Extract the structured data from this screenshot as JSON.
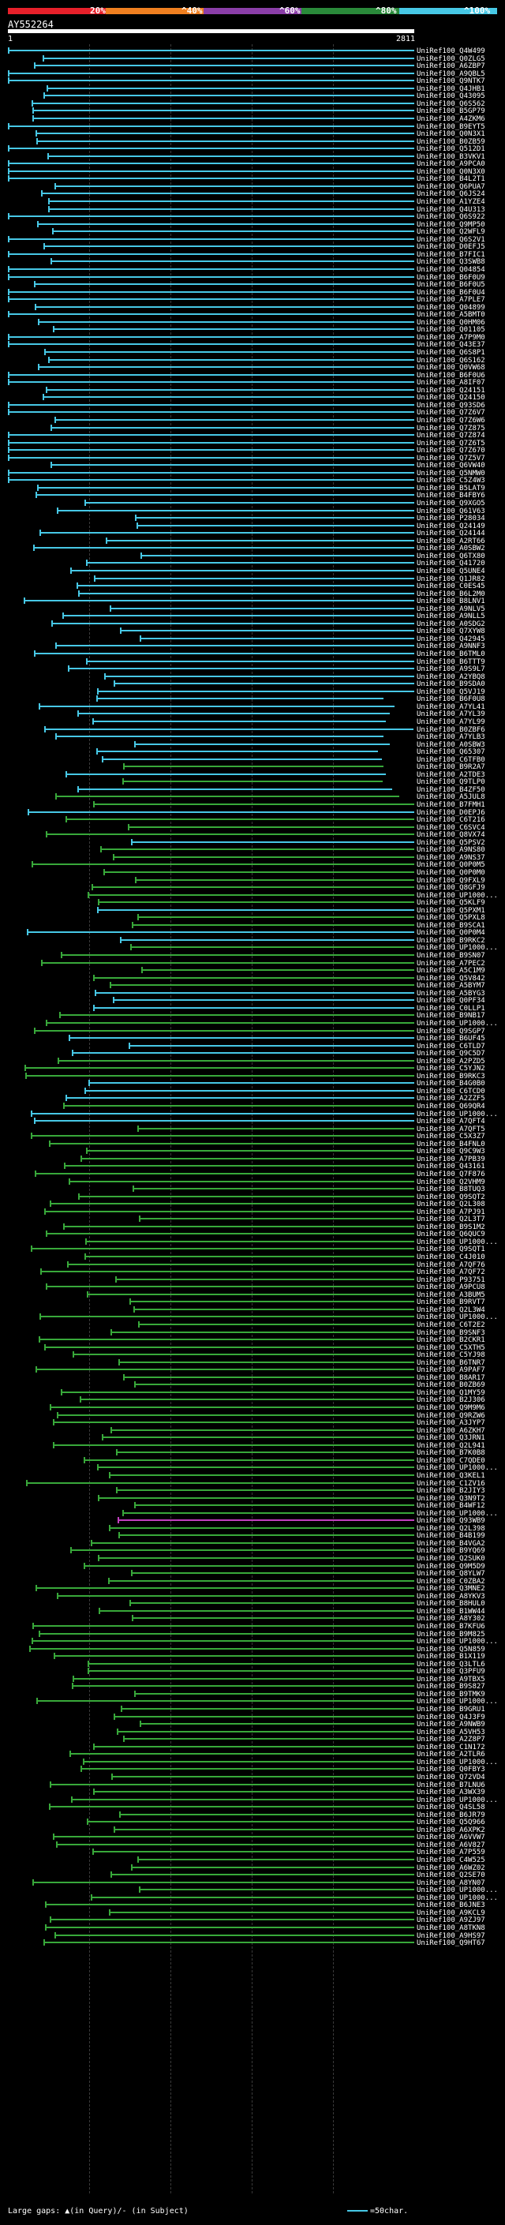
{
  "scale": {
    "labels": [
      "20%",
      "^40%",
      "^60%",
      "^80%",
      "^100%"
    ],
    "colors": {
      "c1": "#e8202a",
      "c2": "#f07f20",
      "c3": "#8b3ea8",
      "c4": "#2a8a3a",
      "c5": "#47c8e6"
    }
  },
  "query": {
    "id": "AY552264",
    "start": "1",
    "end": "2811"
  },
  "colors": {
    "cyan": "#47c8e6",
    "green": "#38a83a",
    "magenta": "#c23fbf",
    "dkgreen": "#2b7f31"
  },
  "footer": {
    "gaps": "Large gaps: ▲(in Query)/- (in Subject)",
    "legend": "=50char."
  },
  "hits": [
    "UniRef100_Q4W499",
    "UniRef100_Q0ZLG5",
    "UniRef100_A6ZBP7",
    "UniRef100_A9QBL5",
    "UniRef100_Q9NTK7",
    "UniRef100_Q4JHB1",
    "UniRef100_Q43095",
    "UniRef100_Q6S562",
    "UniRef100_B5GP79",
    "UniRef100_A4ZKM6",
    "UniRef100_B9EYT5",
    "UniRef100_Q0N3X1",
    "UniRef100_B0ZB59",
    "UniRef100_Q512D1",
    "UniRef100_B3VKV1",
    "UniRef100_A9PCA0",
    "UniRef100_Q0N3X0",
    "UniRef100_B4L2T1",
    "UniRef100_Q6PUA7",
    "UniRef100_Q6JS24",
    "UniRef100_A1YZE4",
    "UniRef100_Q4U313",
    "UniRef100_Q6S922",
    "UniRef100_Q9MP50",
    "UniRef100_Q2WFL9",
    "UniRef100_Q6S2V1",
    "UniRef100_D0EFJ5",
    "UniRef100_B7FIC1",
    "UniRef100_Q3SWB8",
    "UniRef100_Q04854",
    "UniRef100_B6F0U9",
    "UniRef100_B6F0U5",
    "UniRef100_B6F0U4",
    "UniRef100_A7PLE7",
    "UniRef100_Q04899",
    "UniRef100_A5BMT0",
    "UniRef100_Q0HM06",
    "UniRef100_Q01105",
    "UniRef100_A7P9M0",
    "UniRef100_Q43E37",
    "UniRef100_Q6S8P1",
    "UniRef100_Q6S162",
    "UniRef100_Q0VW68",
    "UniRef100_B6F0U6",
    "UniRef100_A8IF07",
    "UniRef100_Q24151",
    "UniRef100_Q24150",
    "UniRef100_Q93SD6",
    "UniRef100_Q7Z6V7",
    "UniRef100_Q7Z6W6",
    "UniRef100_Q7Z875",
    "UniRef100_Q7Z874",
    "UniRef100_Q7Z6T5",
    "UniRef100_Q7Z670",
    "UniRef100_Q7Z5V7",
    "UniRef100_Q6VW40",
    "UniRef100_Q5NMW0",
    "UniRef100_C5Z4W3",
    "UniRef100_B5LAT9",
    "UniRef100_B4FBY6",
    "UniRef100_Q9XGO5",
    "UniRef100_Q61V63",
    "UniRef100_P28034",
    "UniRef100_Q24149",
    "UniRef100_Q24144",
    "UniRef100_A2RT66",
    "UniRef100_A0SBW2",
    "UniRef100_Q6TX80",
    "UniRef100_Q41720",
    "UniRef100_Q5UNE4",
    "UniRef100_Q1JR82",
    "UniRef100_C0ES45",
    "UniRef100_B6L2M0",
    "UniRef100_B8LNV1",
    "UniRef100_A9NLV5",
    "UniRef100_A9NLL5",
    "UniRef100_A0SDG2",
    "UniRef100_Q7XYW8",
    "UniRef100_Q42945",
    "UniRef100_A9NNF3",
    "UniRef100_B6TML0",
    "UniRef100_B6TTT9",
    "UniRef100_A9S9L7",
    "UniRef100_A2YBQ8",
    "UniRef100_B9SDA0",
    "UniRef100_Q5VJ19",
    "UniRef100_B6F0U8",
    "UniRef100_A7YL41",
    "UniRef100_A7YL39",
    "UniRef100_A7YL99",
    "UniRef100_B0ZBF6",
    "UniRef100_A7YLB3",
    "UniRef100_A0SBW3",
    "UniRef100_Q65307",
    "UniRef100_C6TFB0",
    "UniRef100_B9R2A7",
    "UniRef100_A2TDE3",
    "UniRef100_Q9TLP0",
    "UniRef100_B4ZF50",
    "UniRef100_A5JUL8",
    "UniRef100_B7FMH1",
    "UniRef100_D0EPJ6",
    "UniRef100_C6T216",
    "UniRef100_C6SVC4",
    "UniRef100_Q8VX74",
    "UniRef100_Q5PSV2",
    "UniRef100_A9NS80",
    "UniRef100_A9NS37",
    "UniRef100_Q0P0M5",
    "UniRef100_Q0P0M0",
    "UniRef100_Q9FXL9",
    "UniRef100_Q8GFJ9",
    "UniRef100_UP1000...",
    "UniRef100_Q5KLF9",
    "UniRef100_Q5PXM1",
    "UniRef100_Q5PXL8",
    "UniRef100_B9SCA1",
    "UniRef100_Q0P0M4",
    "UniRef100_B9RKC2",
    "UniRef100_UP1000...",
    "UniRef100_B9SN07",
    "UniRef100_A7PEC2",
    "UniRef100_A5C1M9",
    "UniRef100_Q5V842",
    "UniRef100_A5BYM7",
    "UniRef100_A5BYG3",
    "UniRef100_Q0PF34",
    "UniRef100_C0LLP1",
    "UniRef100_B9NB17",
    "UniRef100_UP1000...",
    "UniRef100_Q9SGP7",
    "UniRef100_B6UF45",
    "UniRef100_C6TLD7",
    "UniRef100_Q9C5D7",
    "UniRef100_A2PZD5",
    "UniRef100_C5YJN2",
    "UniRef100_B9RKC3",
    "UniRef100_B4G0B0",
    "UniRef100_C6TCD0",
    "UniRef100_A2ZZF5",
    "UniRef100_Q69QR4",
    "UniRef100_UP1000...",
    "UniRef100_A7QFT4",
    "UniRef100_A7QFT5",
    "UniRef100_C5X3Z7",
    "UniRef100_B4FNL0",
    "UniRef100_Q9C9W3",
    "UniRef100_A7PB39",
    "UniRef100_Q43161",
    "UniRef100_Q7F876",
    "UniRef100_Q2VHM9",
    "UniRef100_B8TUQ3",
    "UniRef100_Q9SQT2",
    "UniRef100_Q2L308",
    "UniRef100_A7PJ91",
    "UniRef100_Q2L3T7",
    "UniRef100_B9S1M2",
    "UniRef100_Q6QUC9",
    "UniRef100_UP1000...",
    "UniRef100_Q9SQT1",
    "UniRef100_C4J010",
    "UniRef100_A7QF76",
    "UniRef100_A7QF72",
    "UniRef100_P93751",
    "UniRef100_A9PCU8",
    "UniRef100_A3BUM5",
    "UniRef100_B9RVT7",
    "UniRef100_Q2L3W4",
    "UniRef100_UP1000...",
    "UniRef100_C6T2E2",
    "UniRef100_B9SNF3",
    "UniRef100_B2CKR1",
    "UniRef100_C5XTH5",
    "UniRef100_C5YJ98",
    "UniRef100_B6TNR7",
    "UniRef100_A9PAF7",
    "UniRef100_B8AR17",
    "UniRef100_B0ZB69",
    "UniRef100_Q1MY59",
    "UniRef100_B2J306",
    "UniRef100_Q9M9M6",
    "UniRef100_Q9RZW6",
    "UniRef100_A3JYP7",
    "UniRef100_A6ZKH7",
    "UniRef100_Q3JRN1",
    "UniRef100_Q2L941",
    "UniRef100_B7K0B8",
    "UniRef100_C7QDE0",
    "UniRef100_UP1000...",
    "UniRef100_Q3KEL1",
    "UniRef100_C1ZV16",
    "UniRef100_B2JIY3",
    "UniRef100_Q3N9T2",
    "UniRef100_B4WF12",
    "UniRef100_UP1000...",
    "UniRef100_Q93WB9",
    "UniRef100_Q2L398",
    "UniRef100_B4B199",
    "UniRef100_B4VGA2",
    "UniRef100_B9YQ69",
    "UniRef100_Q2SUK0",
    "UniRef100_Q9M5D9",
    "UniRef100_Q8YLW7",
    "UniRef100_C0ZBA2",
    "UniRef100_Q3MNE2",
    "UniRef100_A8YKV3",
    "UniRef100_B8HUL0",
    "UniRef100_B1WW44",
    "UniRef100_A8Y302",
    "UniRef100_B7KFU6",
    "UniRef100_B9M825",
    "UniRef100_UP1000...",
    "UniRef100_Q5N859",
    "UniRef100_B1X119",
    "UniRef100_Q3LTL6",
    "UniRef100_Q3PFU9",
    "UniRef100_A9TBX5",
    "UniRef100_B9S827",
    "UniRef100_B9TMK9",
    "UniRef100_UP1000...",
    "UniRef100_B9GRU1",
    "UniRef100_Q4J3F9",
    "UniRef100_A9NWB9",
    "UniRef100_A5VH53",
    "UniRef100_A2Z8P7",
    "UniRef100_C1N172",
    "UniRef100_A2TLR6",
    "UniRef100_UP1000...",
    "UniRef100_Q0FBY3",
    "UniRef100_Q72VD4",
    "UniRef100_B7LNU6",
    "UniRef100_A3WX39",
    "UniRef100_UP1000...",
    "UniRef100_Q4SL58",
    "UniRef100_B6JR79",
    "UniRef100_Q5Q966",
    "UniRef100_A6XPK2",
    "UniRef100_A6VVW7",
    "UniRef100_A6V827",
    "UniRef100_A7P559",
    "UniRef100_C4W525",
    "UniRef100_A6WZ02",
    "UniRef100_Q2SE70",
    "UniRef100_A8YN07",
    "UniRef100_UP1000...",
    "UniRef100_UP1000...",
    "UniRef100_B6JNE3",
    "UniRef100_A9KCL9",
    "UniRef100_A9ZJ97",
    "UniRef100_A8TKN8",
    "UniRef100_A9HS97",
    "UniRef100_Q9HT67"
  ]
}
